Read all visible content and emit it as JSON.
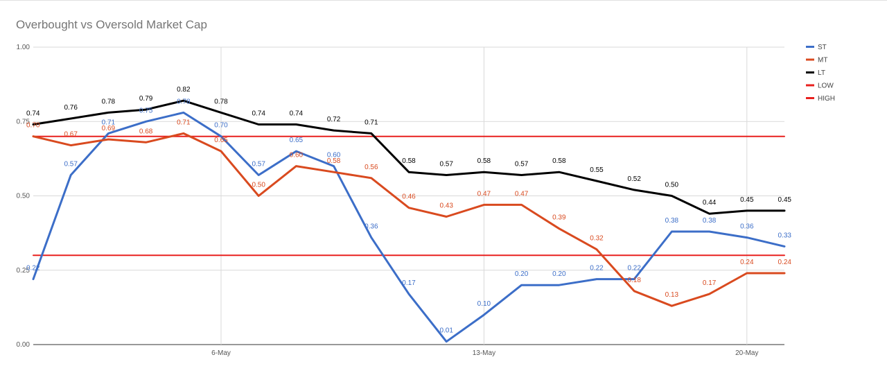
{
  "chart_data": {
    "type": "line",
    "title": "Overbought vs Oversold Market Cap",
    "x": [
      "1-May",
      "2-May",
      "3-May",
      "4-May",
      "5-May",
      "6-May",
      "7-May",
      "8-May",
      "9-May",
      "10-May",
      "11-May",
      "12-May",
      "13-May",
      "14-May",
      "15-May",
      "16-May",
      "17-May",
      "18-May",
      "19-May",
      "20-May",
      "21-May"
    ],
    "x_ticks": [
      "6-May",
      "13-May",
      "20-May"
    ],
    "y_ticks": [
      "0.00",
      "0.25",
      "0.50",
      "0.75",
      "1.00"
    ],
    "ylim": [
      0,
      1
    ],
    "grid": true,
    "legend_position": "right",
    "series": [
      {
        "name": "ST",
        "color": "#3c6ec8",
        "values": [
          0.22,
          0.57,
          0.71,
          0.75,
          0.78,
          0.7,
          0.57,
          0.65,
          0.6,
          0.36,
          0.17,
          0.01,
          0.1,
          0.2,
          0.2,
          0.22,
          0.22,
          0.38,
          0.38,
          0.36,
          0.33
        ],
        "labels": [
          "0.22",
          "0.57",
          "0.71",
          "0.75",
          "0.78",
          "0.70",
          "0.57",
          "0.65",
          "0.60",
          "0.36",
          "0.17",
          "0.01",
          "0.10",
          "0.20",
          "0.20",
          "0.22",
          "0.22",
          "0.38",
          "0.38",
          "0.36",
          "0.33"
        ]
      },
      {
        "name": "MT",
        "color": "#d94a1f",
        "values": [
          0.7,
          0.67,
          0.69,
          0.68,
          0.71,
          0.65,
          0.5,
          0.6,
          0.58,
          0.56,
          0.46,
          0.43,
          0.47,
          0.47,
          0.39,
          0.32,
          0.18,
          0.13,
          0.17,
          0.24,
          0.24
        ],
        "labels": [
          "0.70",
          "0.67",
          "0.69",
          "0.68",
          "0.71",
          "0.65",
          "0.50",
          "0.60",
          "0.58",
          "0.56",
          "0.46",
          "0.43",
          "0.47",
          "0.47",
          "0.39",
          "0.32",
          "0.18",
          "0.13",
          "0.17",
          "0.24",
          "0.24"
        ]
      },
      {
        "name": "LT",
        "color": "#000000",
        "values": [
          0.74,
          0.76,
          0.78,
          0.79,
          0.82,
          0.78,
          0.74,
          0.74,
          0.72,
          0.71,
          0.58,
          0.57,
          0.58,
          0.57,
          0.58,
          0.55,
          0.52,
          0.5,
          0.44,
          0.45,
          0.45
        ],
        "labels": [
          "0.74",
          "0.76",
          "0.78",
          "0.79",
          "0.82",
          "0.78",
          "0.74",
          "0.74",
          "0.72",
          "0.71",
          "0.58",
          "0.57",
          "0.58",
          "0.57",
          "0.58",
          "0.55",
          "0.52",
          "0.50",
          "0.44",
          "0.45",
          "0.45"
        ]
      },
      {
        "name": "LOW",
        "color": "#e8201e",
        "values": [
          0.3,
          0.3,
          0.3,
          0.3,
          0.3,
          0.3,
          0.3,
          0.3,
          0.3,
          0.3,
          0.3,
          0.3,
          0.3,
          0.3,
          0.3,
          0.3,
          0.3,
          0.3,
          0.3,
          0.3,
          0.3
        ]
      },
      {
        "name": "HIGH",
        "color": "#e8201e",
        "values": [
          0.7,
          0.7,
          0.7,
          0.7,
          0.7,
          0.7,
          0.7,
          0.7,
          0.7,
          0.7,
          0.7,
          0.7,
          0.7,
          0.7,
          0.7,
          0.7,
          0.7,
          0.7,
          0.7,
          0.7,
          0.7
        ]
      }
    ]
  }
}
